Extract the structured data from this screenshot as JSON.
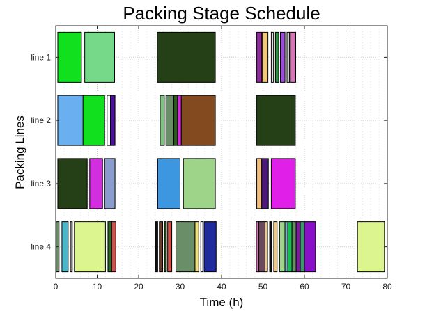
{
  "chart_data": {
    "type": "gantt",
    "title": "Packing Stage Schedule",
    "xlabel": "Time (h)",
    "ylabel": "Packing Lines",
    "xlim": [
      0,
      80
    ],
    "xticks": [
      "0",
      "10",
      "20",
      "30",
      "40",
      "50",
      "60",
      "70",
      "80"
    ],
    "lines": [
      "line 1",
      "line 2",
      "line 3",
      "line 4"
    ],
    "grid": "major and minor, dotted",
    "tasks": [
      {
        "line": "line 1",
        "start": 0.5,
        "end": 6.2,
        "color": "#11e01f"
      },
      {
        "line": "line 1",
        "start": 7.0,
        "end": 14.2,
        "color": "#76d98a"
      },
      {
        "line": "line 1",
        "start": 24.5,
        "end": 38.5,
        "color": "#253f17"
      },
      {
        "line": "line 1",
        "start": 48.5,
        "end": 49.7,
        "color": "#8d2c9c"
      },
      {
        "line": "line 1",
        "start": 49.8,
        "end": 51.2,
        "color": "#f0c880"
      },
      {
        "line": "line 1",
        "start": 52.0,
        "end": 52.5,
        "color": "#ffffff"
      },
      {
        "line": "line 1",
        "start": 53.0,
        "end": 53.8,
        "color": "#2a8f3e"
      },
      {
        "line": "line 1",
        "start": 54.2,
        "end": 55.3,
        "color": "#9d4ed4"
      },
      {
        "line": "line 1",
        "start": 55.8,
        "end": 56.4,
        "color": "#d0d0d0"
      },
      {
        "line": "line 1",
        "start": 56.6,
        "end": 57.9,
        "color": "#d277b4"
      },
      {
        "line": "line 2",
        "start": 0.5,
        "end": 6.6,
        "color": "#6ab0f0"
      },
      {
        "line": "line 2",
        "start": 6.6,
        "end": 11.8,
        "color": "#11e01f"
      },
      {
        "line": "line 2",
        "start": 12.4,
        "end": 13.2,
        "color": "#ffffff"
      },
      {
        "line": "line 2",
        "start": 13.2,
        "end": 14.3,
        "color": "#4b1496"
      },
      {
        "line": "line 2",
        "start": 25.2,
        "end": 26.2,
        "color": "#7cc57e"
      },
      {
        "line": "line 2",
        "start": 26.6,
        "end": 28.5,
        "color": "#6a8f68"
      },
      {
        "line": "line 2",
        "start": 28.5,
        "end": 29.4,
        "color": "#2a5c1a"
      },
      {
        "line": "line 2",
        "start": 29.4,
        "end": 30.3,
        "color": "#d22ee0"
      },
      {
        "line": "line 2",
        "start": 30.3,
        "end": 38.5,
        "color": "#834a1f"
      },
      {
        "line": "line 2",
        "start": 48.5,
        "end": 57.8,
        "color": "#253f17"
      },
      {
        "line": "line 3",
        "start": 0.5,
        "end": 7.6,
        "color": "#253f17"
      },
      {
        "line": "line 3",
        "start": 8.2,
        "end": 11.3,
        "color": "#d22ee0"
      },
      {
        "line": "line 3",
        "start": 11.8,
        "end": 14.3,
        "color": "#8a9ccb"
      },
      {
        "line": "line 3",
        "start": 24.6,
        "end": 30.0,
        "color": "#3d96e0"
      },
      {
        "line": "line 3",
        "start": 30.8,
        "end": 38.5,
        "color": "#9ed38a"
      },
      {
        "line": "line 3",
        "start": 48.5,
        "end": 49.7,
        "color": "#f0c080"
      },
      {
        "line": "line 3",
        "start": 49.7,
        "end": 51.3,
        "color": "#4b1a7a"
      },
      {
        "line": "line 3",
        "start": 52.0,
        "end": 57.8,
        "color": "#e020e8"
      },
      {
        "line": "line 4",
        "start": 0.1,
        "end": 0.8,
        "color": "#6a8f68"
      },
      {
        "line": "line 4",
        "start": 1.5,
        "end": 3.0,
        "color": "#4ab8c8"
      },
      {
        "line": "line 4",
        "start": 3.5,
        "end": 4.0,
        "color": "#7a7a7a"
      },
      {
        "line": "line 4",
        "start": 4.5,
        "end": 12.0,
        "color": "#dcf58f"
      },
      {
        "line": "line 4",
        "start": 12.6,
        "end": 13.5,
        "color": "#2a6a2a"
      },
      {
        "line": "line 4",
        "start": 13.5,
        "end": 14.5,
        "color": "#d0504a"
      },
      {
        "line": "line 4",
        "start": 24.0,
        "end": 24.6,
        "color": "#101010"
      },
      {
        "line": "line 4",
        "start": 25.0,
        "end": 25.8,
        "color": "#6a3a2a"
      },
      {
        "line": "line 4",
        "start": 26.2,
        "end": 26.7,
        "color": "#1a4a1a"
      },
      {
        "line": "line 4",
        "start": 27.0,
        "end": 28.0,
        "color": "#d0504a"
      },
      {
        "line": "line 4",
        "start": 29.0,
        "end": 33.6,
        "color": "#6a8f68"
      },
      {
        "line": "line 4",
        "start": 33.6,
        "end": 34.5,
        "color": "#f0e080"
      },
      {
        "line": "line 4",
        "start": 35.0,
        "end": 35.5,
        "color": "#ffffff"
      },
      {
        "line": "line 4",
        "start": 35.8,
        "end": 38.7,
        "color": "#1f2a9c"
      },
      {
        "line": "line 4",
        "start": 48.4,
        "end": 49.0,
        "color": "#d277b4"
      },
      {
        "line": "line 4",
        "start": 49.0,
        "end": 50.5,
        "color": "#6a4a5a"
      },
      {
        "line": "line 4",
        "start": 50.5,
        "end": 51.1,
        "color": "#f0c880"
      },
      {
        "line": "line 4",
        "start": 51.6,
        "end": 52.1,
        "color": "#101010"
      },
      {
        "line": "line 4",
        "start": 52.6,
        "end": 53.4,
        "color": "#f0c880"
      },
      {
        "line": "line 4",
        "start": 54.0,
        "end": 55.3,
        "color": "#9ed38a"
      },
      {
        "line": "line 4",
        "start": 55.3,
        "end": 56.0,
        "color": "#7ab0c0"
      },
      {
        "line": "line 4",
        "start": 56.0,
        "end": 57.0,
        "color": "#11c04f"
      },
      {
        "line": "line 4",
        "start": 57.0,
        "end": 58.0,
        "color": "#6a8f68"
      },
      {
        "line": "line 4",
        "start": 58.0,
        "end": 59.0,
        "color": "#7a1a9c"
      },
      {
        "line": "line 4",
        "start": 59.0,
        "end": 60.0,
        "color": "#3a9a6a"
      },
      {
        "line": "line 4",
        "start": 60.0,
        "end": 62.7,
        "color": "#8a10c8"
      },
      {
        "line": "line 4",
        "start": 72.8,
        "end": 79.3,
        "color": "#dcf58f"
      }
    ]
  }
}
